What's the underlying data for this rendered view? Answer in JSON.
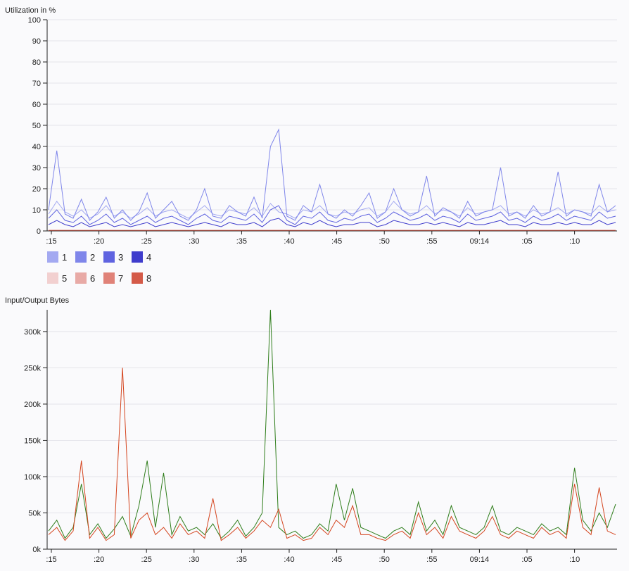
{
  "chart_data": [
    {
      "type": "line",
      "title": "Utilization in %",
      "ylim": [
        0,
        100
      ],
      "yticks": [
        0,
        10,
        20,
        30,
        40,
        50,
        60,
        70,
        80,
        90,
        100
      ],
      "xticks": [
        ":15",
        ":20",
        ":25",
        ":30",
        ":35",
        ":40",
        ":45",
        ":50",
        ":55",
        "09:14",
        ":05",
        ":10"
      ],
      "legend": [
        {
          "name": "1",
          "color": "#a3a9f1"
        },
        {
          "name": "2",
          "color": "#7f86ea"
        },
        {
          "name": "3",
          "color": "#5f63e0"
        },
        {
          "name": "4",
          "color": "#3f3ccc"
        },
        {
          "name": "5",
          "color": "#f2d0d0"
        },
        {
          "name": "6",
          "color": "#e8aaa6"
        },
        {
          "name": "7",
          "color": "#e08278"
        },
        {
          "name": "8",
          "color": "#d45a48"
        }
      ],
      "series": [
        {
          "name": "1",
          "color": "#a3a9f1",
          "values": [
            8,
            14,
            9,
            7,
            10,
            6,
            8,
            12,
            7,
            9,
            6,
            8,
            11,
            7,
            9,
            10,
            8,
            6,
            9,
            12,
            8,
            7,
            10,
            9,
            8,
            11,
            7,
            13,
            9,
            8,
            6,
            10,
            9,
            12,
            8,
            7,
            9,
            8,
            10,
            11,
            7,
            9,
            14,
            10,
            8,
            9,
            12,
            8,
            10,
            9,
            7,
            11,
            8,
            9,
            10,
            12,
            8,
            9,
            7,
            10,
            8,
            9,
            11,
            8,
            10,
            9,
            8,
            12,
            9,
            10
          ]
        },
        {
          "name": "2",
          "color": "#7f86ea",
          "values": [
            10,
            38,
            8,
            6,
            15,
            5,
            9,
            16,
            6,
            10,
            5,
            9,
            18,
            6,
            10,
            14,
            7,
            5,
            10,
            20,
            7,
            6,
            12,
            9,
            7,
            16,
            6,
            40,
            48,
            7,
            5,
            12,
            9,
            22,
            8,
            6,
            10,
            7,
            12,
            18,
            6,
            9,
            20,
            10,
            7,
            9,
            26,
            7,
            11,
            9,
            6,
            14,
            7,
            9,
            10,
            30,
            7,
            9,
            6,
            12,
            7,
            9,
            28,
            7,
            10,
            9,
            7,
            22,
            9,
            12
          ]
        },
        {
          "name": "3",
          "color": "#5f63e0",
          "values": [
            6,
            10,
            5,
            4,
            7,
            3,
            5,
            8,
            4,
            6,
            3,
            5,
            7,
            4,
            6,
            7,
            5,
            3,
            6,
            8,
            5,
            4,
            7,
            6,
            5,
            8,
            4,
            10,
            12,
            5,
            3,
            7,
            6,
            9,
            5,
            4,
            6,
            5,
            7,
            8,
            4,
            6,
            9,
            7,
            5,
            6,
            8,
            5,
            7,
            6,
            4,
            8,
            5,
            6,
            7,
            9,
            5,
            6,
            4,
            7,
            5,
            6,
            8,
            5,
            7,
            6,
            5,
            9,
            6,
            7
          ]
        },
        {
          "name": "4",
          "color": "#3f3ccc",
          "values": [
            3,
            5,
            3,
            2,
            4,
            2,
            3,
            4,
            2,
            3,
            2,
            3,
            4,
            2,
            3,
            4,
            3,
            2,
            3,
            4,
            3,
            2,
            4,
            3,
            3,
            4,
            2,
            5,
            6,
            3,
            2,
            4,
            3,
            5,
            3,
            2,
            3,
            3,
            4,
            4,
            2,
            3,
            5,
            4,
            3,
            3,
            4,
            3,
            4,
            3,
            2,
            4,
            3,
            3,
            4,
            5,
            3,
            3,
            2,
            4,
            3,
            3,
            4,
            3,
            4,
            3,
            3,
            5,
            3,
            4
          ]
        },
        {
          "name": "8",
          "color": "#d45a48",
          "values": [
            0.3,
            0.3,
            0.3,
            0.3,
            0.3,
            0.3,
            0.3,
            0.3,
            0.3,
            0.3,
            0.3,
            0.3,
            0.3,
            0.3,
            0.3,
            0.3,
            0.3,
            0.3,
            0.3,
            0.3,
            0.3,
            0.3,
            0.3,
            0.3,
            0.3,
            0.3,
            0.3,
            0.3,
            0.3,
            0.3,
            0.3,
            0.3,
            0.3,
            0.3,
            0.3,
            0.3,
            0.3,
            0.3,
            0.3,
            0.3,
            0.3,
            0.3,
            0.3,
            0.3,
            0.3,
            0.3,
            0.3,
            0.3,
            0.3,
            0.3,
            0.3,
            0.3,
            0.3,
            0.3,
            0.3,
            0.3,
            0.3,
            0.3,
            0.3,
            0.3,
            0.3,
            0.3,
            0.3,
            0.3,
            0.3,
            0.3,
            0.3,
            0.3,
            0.3,
            0.3
          ]
        }
      ]
    },
    {
      "type": "line",
      "title": "Input/Output Bytes",
      "ylim": [
        0,
        330000
      ],
      "yticks": [
        0,
        50000,
        100000,
        150000,
        200000,
        250000,
        300000
      ],
      "ytick_labels": [
        "0k",
        "50k",
        "100k",
        "150k",
        "200k",
        "250k",
        "300k"
      ],
      "xticks": [
        ":15",
        ":20",
        ":25",
        ":30",
        ":35",
        ":40",
        ":45",
        ":50",
        ":55",
        "09:14",
        ":05",
        ":10"
      ],
      "series": [
        {
          "name": "",
          "color": "#2e7d1a",
          "values": [
            25000,
            40000,
            15000,
            30000,
            90000,
            20000,
            35000,
            15000,
            28000,
            45000,
            18000,
            60000,
            122000,
            30000,
            105000,
            20000,
            45000,
            25000,
            30000,
            20000,
            35000,
            15000,
            25000,
            40000,
            18000,
            30000,
            50000,
            330000,
            30000,
            20000,
            25000,
            15000,
            20000,
            35000,
            25000,
            90000,
            40000,
            84000,
            30000,
            25000,
            20000,
            15000,
            25000,
            30000,
            20000,
            65000,
            25000,
            40000,
            20000,
            60000,
            30000,
            25000,
            20000,
            30000,
            60000,
            25000,
            20000,
            30000,
            25000,
            20000,
            35000,
            25000,
            30000,
            20000,
            112000,
            40000,
            25000,
            50000,
            30000,
            62000
          ]
        },
        {
          "name": "",
          "color": "#d4441e",
          "values": [
            20000,
            30000,
            12000,
            25000,
            122000,
            15000,
            30000,
            12000,
            20000,
            250000,
            15000,
            40000,
            50000,
            20000,
            30000,
            15000,
            35000,
            20000,
            25000,
            15000,
            70000,
            12000,
            20000,
            30000,
            15000,
            25000,
            40000,
            30000,
            55000,
            15000,
            20000,
            12000,
            15000,
            30000,
            20000,
            40000,
            30000,
            60000,
            20000,
            20000,
            15000,
            12000,
            20000,
            25000,
            15000,
            50000,
            20000,
            30000,
            15000,
            45000,
            25000,
            20000,
            15000,
            25000,
            45000,
            20000,
            15000,
            25000,
            20000,
            15000,
            30000,
            20000,
            25000,
            15000,
            90000,
            30000,
            20000,
            85000,
            25000,
            20000
          ]
        }
      ]
    }
  ]
}
